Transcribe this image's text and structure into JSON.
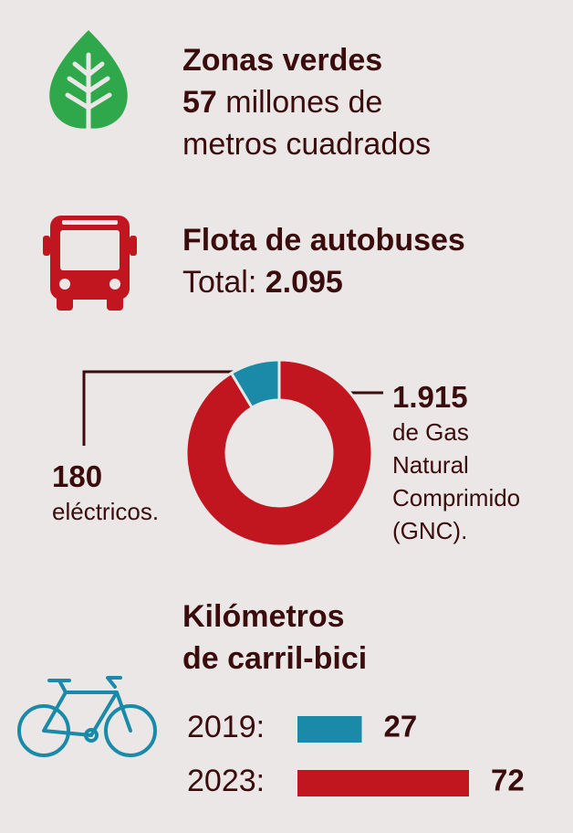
{
  "green": {
    "title": "Zonas verdes",
    "value": "57",
    "lines": [
      "millones de",
      "metros cuadrados"
    ]
  },
  "buses": {
    "title": "Flota de autobuses",
    "total_label": "Total:",
    "total": "2.095"
  },
  "chart_data": [
    {
      "type": "pie",
      "categories": [
        "de Gas Natural Comprimido (GNC).",
        "eléctricos."
      ],
      "values": [
        1915,
        180
      ],
      "value_labels": [
        "1.915",
        "180"
      ],
      "colors": [
        "#c1161f",
        "#1a8aa8"
      ]
    },
    {
      "type": "bar",
      "title": [
        "Kilómetros",
        "de carril-bici"
      ],
      "categories": [
        "2019:",
        "2023:"
      ],
      "values": [
        27,
        72
      ],
      "colors": [
        "#1a8aa8",
        "#c1161f"
      ]
    }
  ]
}
